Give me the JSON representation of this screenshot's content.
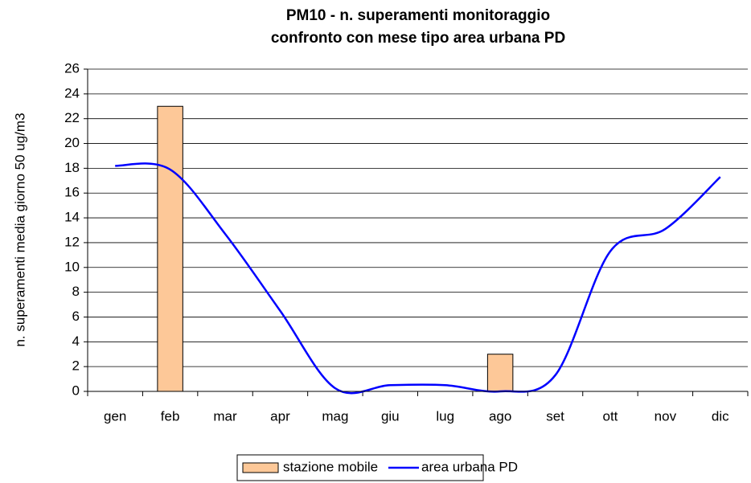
{
  "chart_data": {
    "type": "bar",
    "title": [
      "PM10 - n. superamenti monitoraggio",
      "confronto con mese tipo area urbana PD"
    ],
    "y_label": "n. superamenti media giorno 50 ug/m3",
    "categories": [
      "gen",
      "feb",
      "mar",
      "apr",
      "mag",
      "giu",
      "lug",
      "ago",
      "set",
      "ott",
      "nov",
      "dic"
    ],
    "series": [
      {
        "name": "stazione mobile",
        "type": "bar",
        "color": "#fdc898",
        "values": [
          null,
          23,
          null,
          null,
          null,
          null,
          null,
          3,
          null,
          null,
          null,
          null
        ]
      },
      {
        "name": "area urbana PD",
        "type": "line",
        "color": "#0000ff",
        "values": [
          18.2,
          17.9,
          12.7,
          6.5,
          0.25,
          0.5,
          0.5,
          0,
          1.3,
          11.3,
          13.1,
          17.3
        ]
      }
    ],
    "ylim": [
      0,
      26
    ],
    "yticks": [
      0,
      2,
      4,
      6,
      8,
      10,
      12,
      14,
      16,
      18,
      20,
      22,
      24,
      26
    ],
    "grid": true,
    "legend": "bottom"
  }
}
